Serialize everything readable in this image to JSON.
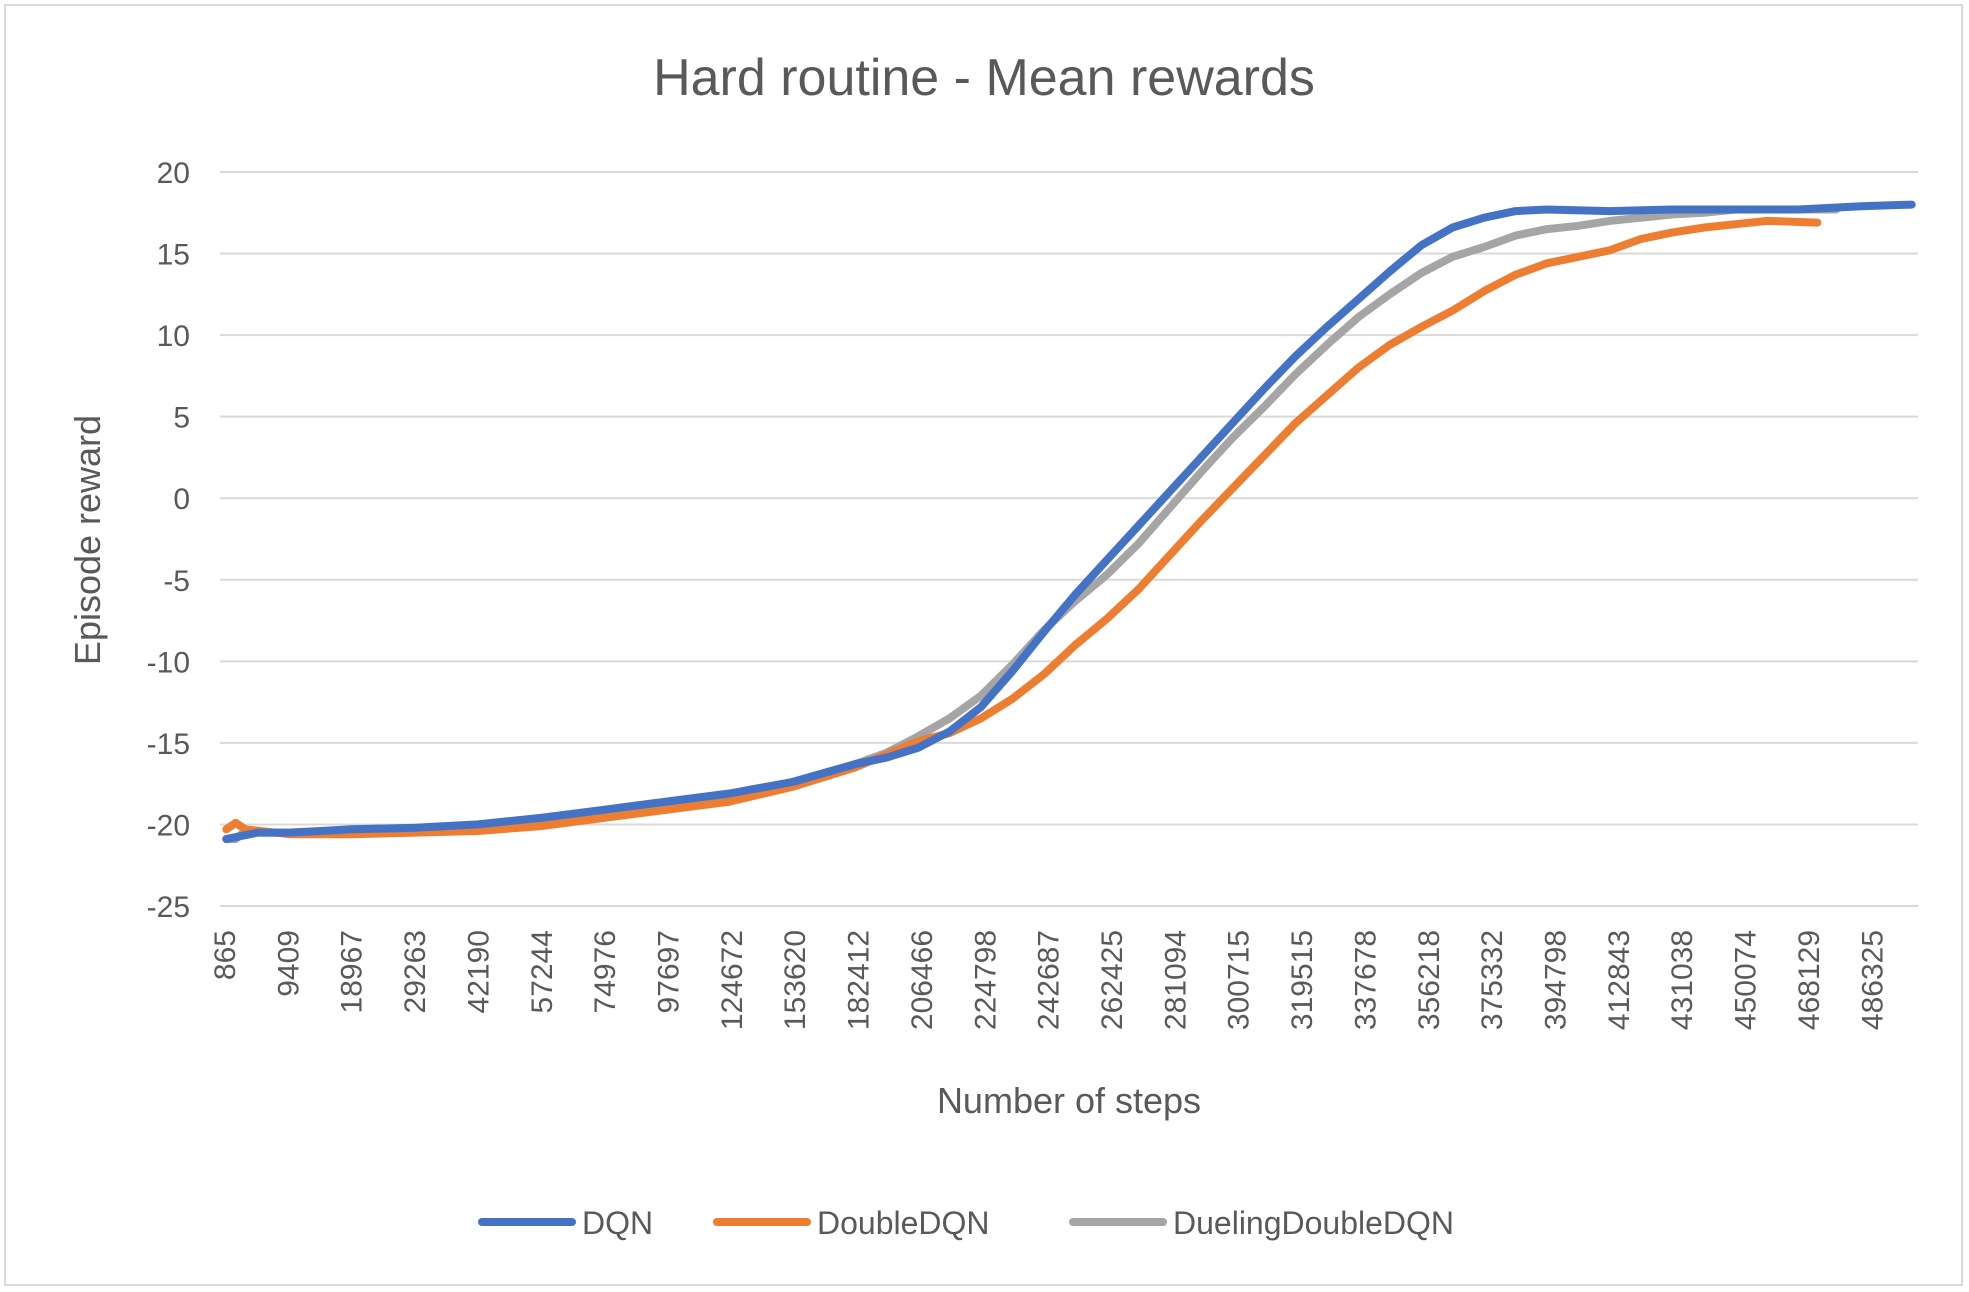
{
  "chart_data": {
    "type": "line",
    "title": "Hard routine - Mean rewards",
    "xlabel": "Number of steps",
    "ylabel": "Episode reward",
    "ylim": [
      -25,
      20
    ],
    "y_ticks": [
      "20",
      "15",
      "10",
      "5",
      "0",
      "-5",
      "-10",
      "-15",
      "-20",
      "-25"
    ],
    "x_tick_labels": [
      "865",
      "9409",
      "18967",
      "29263",
      "42190",
      "57244",
      "74976",
      "97697",
      "124672",
      "153620",
      "182412",
      "206466",
      "224798",
      "242687",
      "262425",
      "281094",
      "300715",
      "319515",
      "337678",
      "356218",
      "375332",
      "394798",
      "412843",
      "431038",
      "450074",
      "468129",
      "486325"
    ],
    "x_tick_count": 27,
    "grid": "horizontal",
    "legend_position": "bottom",
    "series": [
      {
        "name": "DQN",
        "color": "#4472C4",
        "x_index": [
          0,
          0.5,
          1,
          1.5,
          2,
          3,
          4,
          5,
          6,
          7,
          8,
          9,
          10,
          10.5,
          11,
          11.5,
          12,
          12.5,
          13,
          13.5,
          14,
          14.5,
          15,
          15.5,
          16,
          16.5,
          17,
          17.5,
          18,
          18.5,
          19,
          19.5,
          20,
          20.5,
          21,
          22,
          23,
          24,
          25,
          26,
          26.8
        ],
        "values": [
          -20.9,
          -20.5,
          -20.5,
          -20.4,
          -20.3,
          -20.2,
          -20.0,
          -19.6,
          -19.1,
          -18.6,
          -18.1,
          -17.4,
          -16.3,
          -15.9,
          -15.3,
          -14.3,
          -12.8,
          -10.6,
          -8.2,
          -5.9,
          -3.8,
          -1.7,
          0.4,
          2.5,
          4.6,
          6.7,
          8.7,
          10.5,
          12.2,
          13.9,
          15.5,
          16.6,
          17.2,
          17.6,
          17.7,
          17.6,
          17.7,
          17.7,
          17.7,
          17.9,
          18.0
        ]
      },
      {
        "name": "DoubleDQN",
        "color": "#ED7D31",
        "x_index": [
          0,
          0.15,
          0.3,
          1,
          2,
          3,
          4,
          5,
          6,
          7,
          8,
          9,
          10,
          10.5,
          11,
          11.5,
          12,
          12.5,
          13,
          13.5,
          14,
          14.5,
          15,
          15.5,
          16,
          16.5,
          17,
          17.5,
          18,
          18.5,
          19,
          19.5,
          20,
          20.5,
          21,
          21.5,
          22,
          22.5,
          23,
          23.5,
          24,
          24.5,
          25.3
        ],
        "values": [
          -20.3,
          -19.9,
          -20.3,
          -20.6,
          -20.6,
          -20.5,
          -20.4,
          -20.1,
          -19.6,
          -19.1,
          -18.6,
          -17.7,
          -16.5,
          -15.7,
          -14.9,
          -14.4,
          -13.5,
          -12.3,
          -10.8,
          -9.0,
          -7.4,
          -5.6,
          -3.5,
          -1.4,
          0.6,
          2.6,
          4.6,
          6.3,
          8.0,
          9.4,
          10.5,
          11.5,
          12.7,
          13.7,
          14.4,
          14.8,
          15.2,
          15.9,
          16.3,
          16.6,
          16.8,
          17.0,
          16.9
        ]
      },
      {
        "name": "DuelingDoubleDQN",
        "color": "#A5A5A5",
        "x_index": [
          0,
          0.15,
          0.3,
          0.5,
          1,
          2,
          3,
          4,
          5,
          6,
          7,
          8,
          9,
          10,
          10.5,
          11,
          11.5,
          12,
          12.5,
          13,
          13.5,
          14,
          14.5,
          15,
          15.5,
          16,
          16.5,
          17,
          17.5,
          18,
          18.5,
          19,
          19.5,
          20,
          20.5,
          21,
          21.5,
          22,
          22.5,
          23,
          23.5,
          24,
          24.5,
          25,
          25.6
        ],
        "values": [
          -20.9,
          -20.9,
          -20.4,
          -20.5,
          -20.5,
          -20.4,
          -20.3,
          -20.1,
          -19.8,
          -19.4,
          -19.0,
          -18.6,
          -17.5,
          -16.3,
          -15.6,
          -14.6,
          -13.5,
          -12.1,
          -10.2,
          -8.1,
          -6.3,
          -4.7,
          -2.8,
          -0.6,
          1.6,
          3.7,
          5.6,
          7.6,
          9.4,
          11.1,
          12.5,
          13.8,
          14.8,
          15.4,
          16.1,
          16.5,
          16.7,
          17.0,
          17.2,
          17.4,
          17.5,
          17.7,
          17.7,
          17.7,
          17.7
        ]
      }
    ]
  }
}
